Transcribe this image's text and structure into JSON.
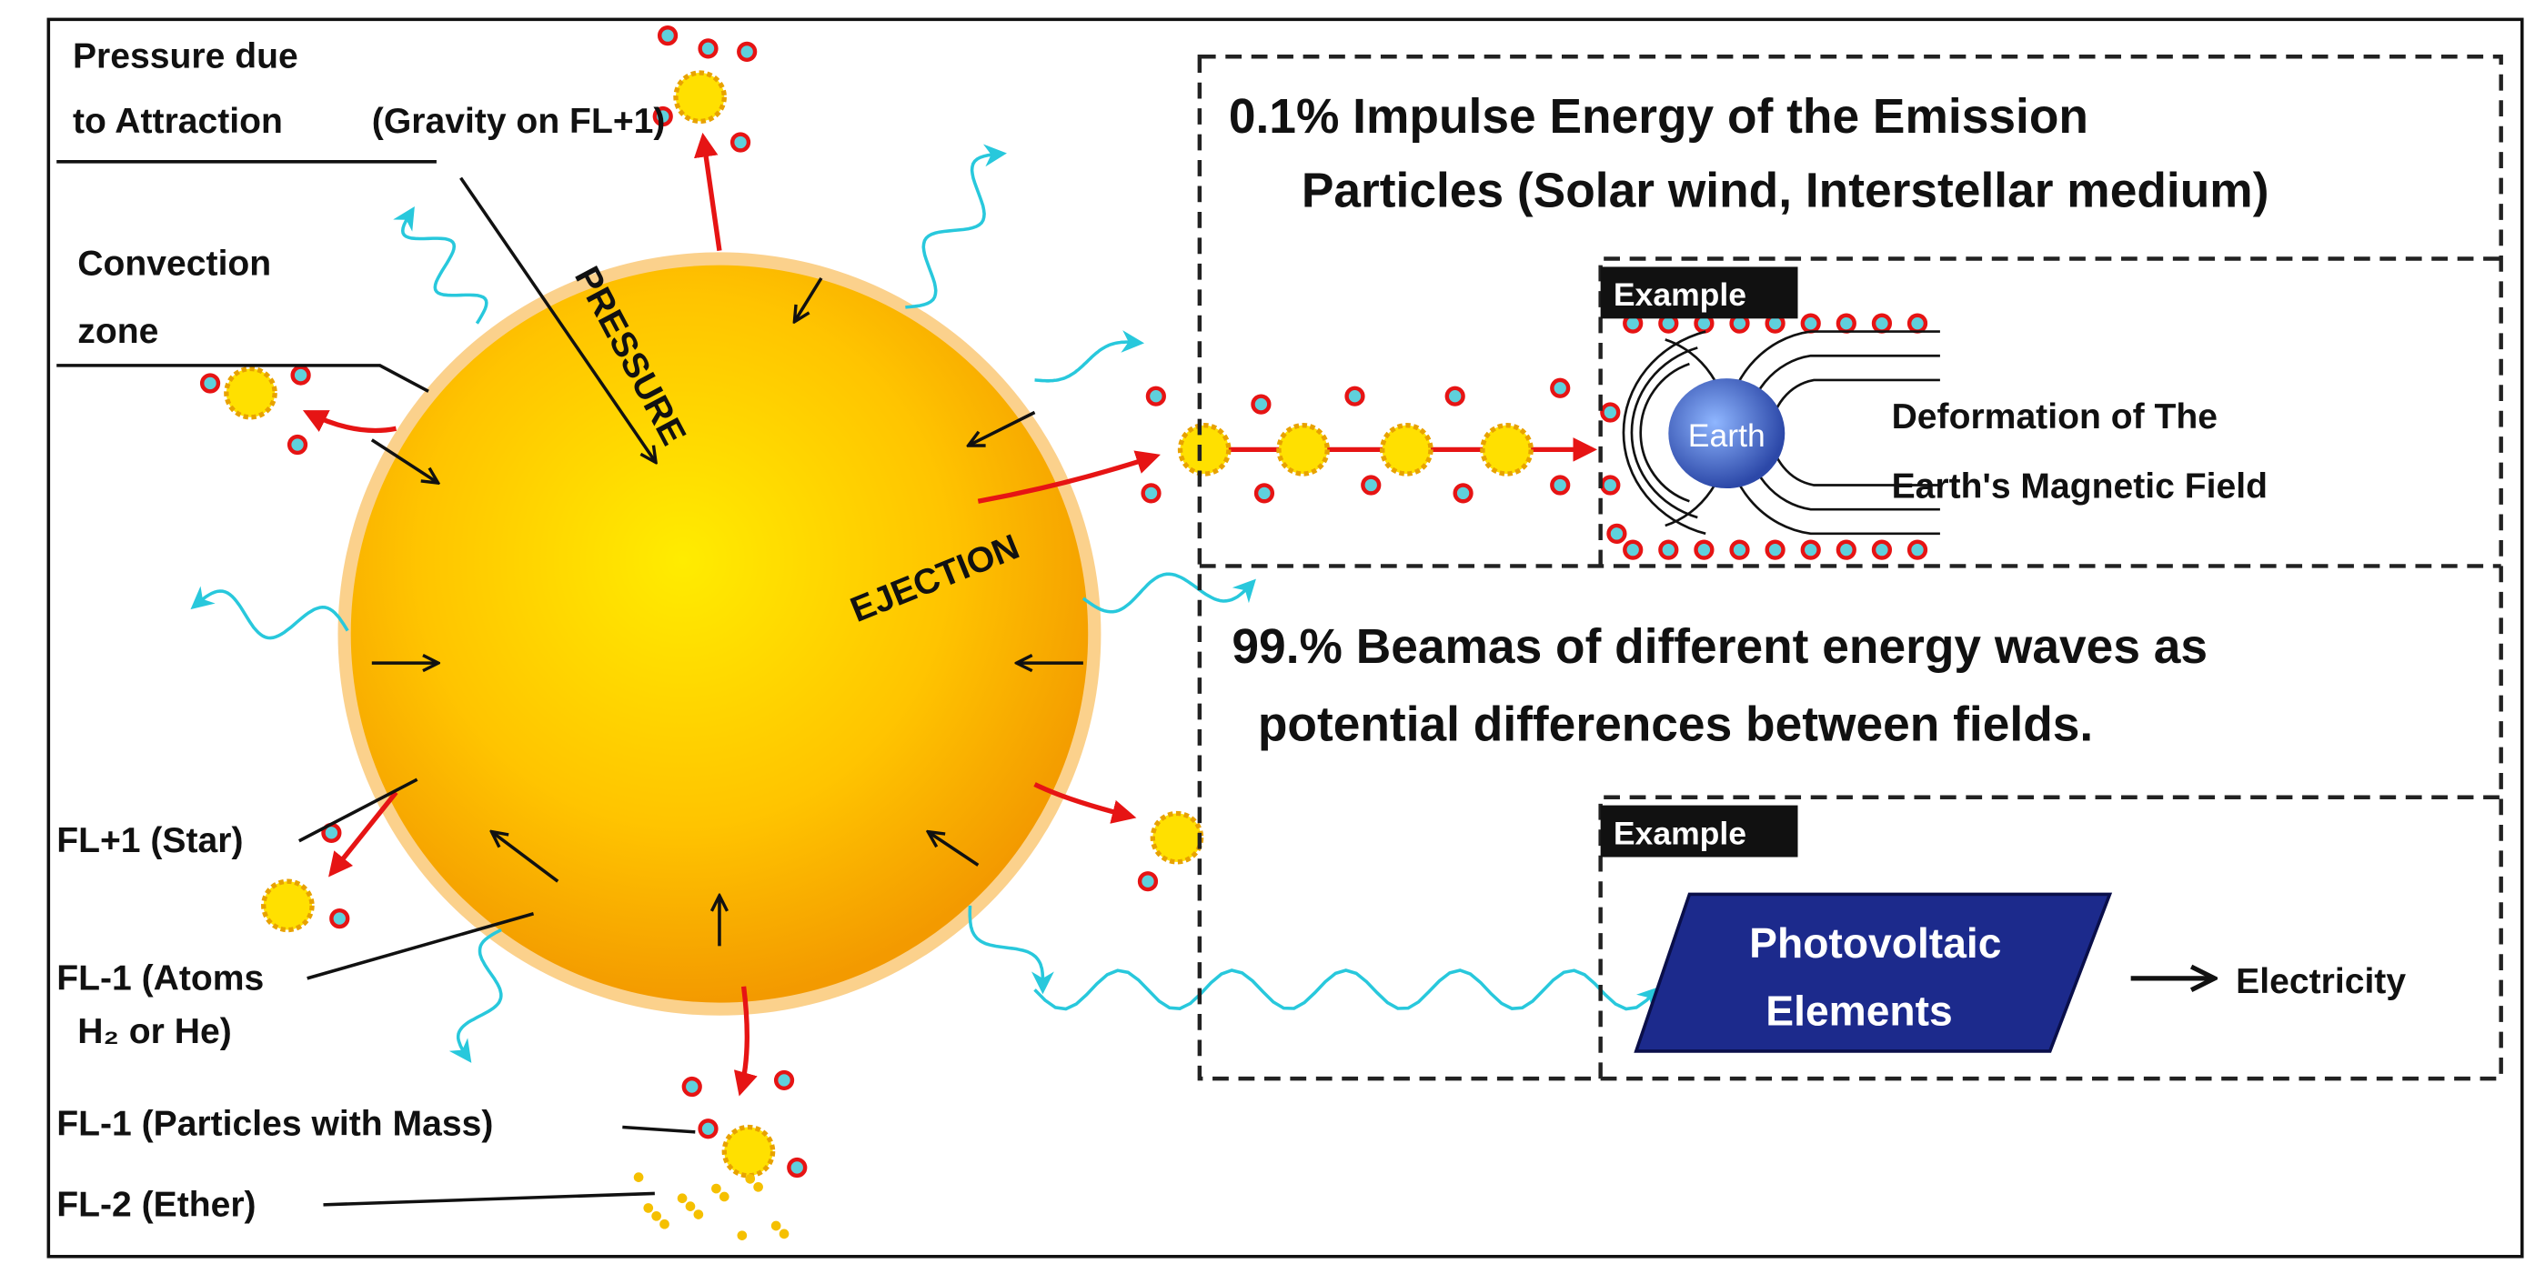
{
  "left_labels": {
    "pressure_line1": "Pressure due",
    "pressure_line2": "to Attraction",
    "pressure_note": "(Gravity on FL+1)",
    "convection_line1": "Convection",
    "convection_line2": "zone",
    "star": "FL+1 (Star)",
    "atoms_line1": "FL-1 (Atoms",
    "atoms_line2": "H₂ or He)",
    "particles": "FL-1 (Particles with Mass)",
    "ether": "FL-2 (Ether)"
  },
  "sun": {
    "pressure": "PRESSURE",
    "ejection": "EJECTION"
  },
  "panels": [
    {
      "title_lines": [
        "0.1% Impulse Energy of the Emission",
        "Particles (Solar wind, Interstellar medium)"
      ],
      "example": {
        "tag": "Example",
        "earth": "Earth",
        "caption_lines": [
          "Deformation of The",
          "Earth's Magnetic Field"
        ]
      }
    },
    {
      "title_lines": [
        "99.% Beamas of different energy waves as",
        "potential differences between fields."
      ],
      "example": {
        "tag": "Example",
        "device_lines": [
          "Photovoltaic",
          "Elements"
        ],
        "result": "Electricity"
      }
    }
  ]
}
